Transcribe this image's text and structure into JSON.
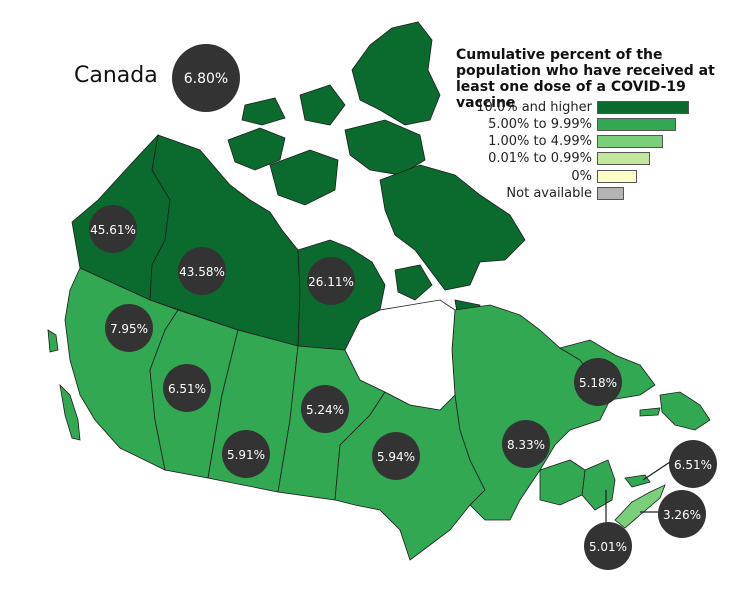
{
  "title": "Cumulative percent of the population who have received at least one dose of a COVID-19 vaccine",
  "title_lines": [
    "Cumulative percent of the",
    "population who have received at",
    "least one dose of a COVID-19 vaccine"
  ],
  "country": {
    "name": "Canada",
    "value": "6.80%"
  },
  "legend": [
    {
      "label": "10.0% and higher",
      "color": "#0b6b2e"
    },
    {
      "label": "5.00% to 9.99%",
      "color": "#32a852"
    },
    {
      "label": "1.00% to 4.99%",
      "color": "#7bcf7b"
    },
    {
      "label": "0.01% to 0.99%",
      "color": "#c3e89c"
    },
    {
      "label": "0%",
      "color": "#ffffc8"
    },
    {
      "label": "Not available",
      "color": "#b4b4b4"
    }
  ],
  "regions": [
    {
      "name": "Yukon",
      "value": "45.61%",
      "band": "10.0% and higher"
    },
    {
      "name": "Northwest Territories",
      "value": "43.58%",
      "band": "10.0% and higher"
    },
    {
      "name": "Nunavut",
      "value": "26.11%",
      "band": "10.0% and higher"
    },
    {
      "name": "British Columbia",
      "value": "7.95%",
      "band": "5.00% to 9.99%"
    },
    {
      "name": "Alberta",
      "value": "6.51%",
      "band": "5.00% to 9.99%"
    },
    {
      "name": "Saskatchewan",
      "value": "5.91%",
      "band": "5.00% to 9.99%"
    },
    {
      "name": "Manitoba",
      "value": "5.24%",
      "band": "5.00% to 9.99%"
    },
    {
      "name": "Ontario",
      "value": "5.94%",
      "band": "5.00% to 9.99%"
    },
    {
      "name": "Quebec",
      "value": "8.33%",
      "band": "5.00% to 9.99%"
    },
    {
      "name": "Newfoundland and Labrador",
      "value": "5.18%",
      "band": "5.00% to 9.99%"
    },
    {
      "name": "New Brunswick",
      "value": "5.01%",
      "band": "5.00% to 9.99%"
    },
    {
      "name": "Prince Edward Island",
      "value": "6.51%",
      "band": "5.00% to 9.99%"
    },
    {
      "name": "Nova Scotia",
      "value": "3.26%",
      "band": "1.00% to 4.99%"
    }
  ],
  "colors": {
    "bubble": "#333333",
    "border": "#1e1e1e",
    "water": "#ffffff"
  }
}
